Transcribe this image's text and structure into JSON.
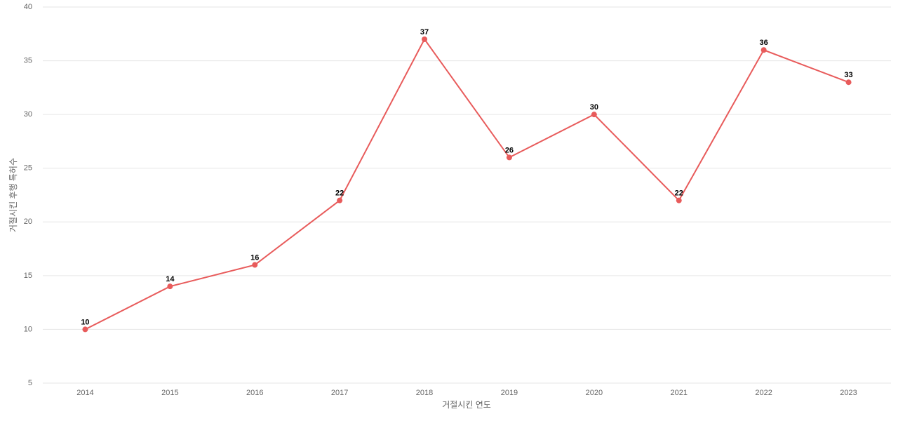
{
  "chart_data": {
    "type": "line",
    "x_label": "거절시킨 연도",
    "y_label": "거절시킨 후행 특허수",
    "categories": [
      "2014",
      "2015",
      "2016",
      "2017",
      "2018",
      "2019",
      "2020",
      "2021",
      "2022",
      "2023"
    ],
    "series": [
      {
        "name": "거절시킨 후행 특허수",
        "color": "#e85b5b",
        "values": [
          10,
          14,
          16,
          22,
          37,
          26,
          30,
          22,
          36,
          33
        ]
      }
    ],
    "ylim": [
      5,
      40
    ],
    "yticks": [
      5,
      10,
      15,
      20,
      25,
      30,
      35,
      40
    ],
    "grid": true
  }
}
